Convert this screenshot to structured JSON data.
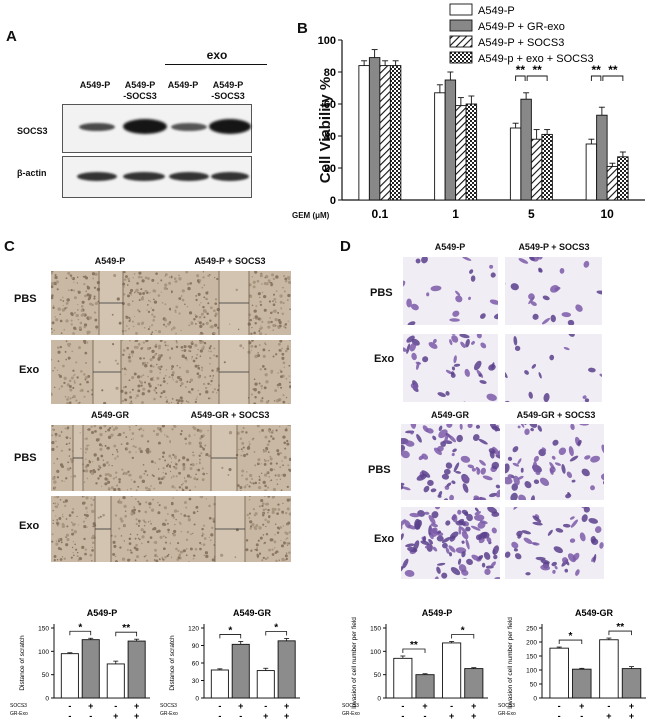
{
  "panels": {
    "a": "A",
    "b": "B",
    "c": "C",
    "d": "D"
  },
  "panel_a": {
    "exo_label": "exo",
    "lanes": [
      "A549-P",
      "A549-P\n-SOCS3",
      "A549-P",
      "A549-P\n-SOCS3"
    ],
    "rows": [
      "SOCS3",
      "β-actin"
    ]
  },
  "panel_c": {
    "top_cols": [
      "A549-P",
      "A549-P + SOCS3"
    ],
    "bottom_cols": [
      "A549-GR",
      "A549-GR + SOCS3"
    ],
    "rows": [
      "PBS",
      "Exo"
    ]
  },
  "panel_d": {
    "top_cols": [
      "A549-P",
      "A549-P + SOCS3"
    ],
    "bottom_cols": [
      "A549-GR",
      "A549-GR + SOCS3"
    ],
    "rows": [
      "PBS",
      "Exo"
    ]
  },
  "chart_data": [
    {
      "type": "bar",
      "id": "B",
      "ylabel": "Cell Viability %",
      "xlabel": "GEM (μM)",
      "categories": [
        "0.1",
        "1",
        "5",
        "10"
      ],
      "ylim": [
        0,
        100
      ],
      "yticks": [
        0,
        20,
        40,
        60,
        80,
        100
      ],
      "series": [
        {
          "name": "A549-P",
          "values": [
            84,
            67,
            45,
            35
          ],
          "errors": [
            3,
            5,
            3,
            3
          ]
        },
        {
          "name": "A549-P + GR-exo",
          "values": [
            89,
            75,
            63,
            53
          ],
          "errors": [
            5,
            5,
            4,
            5
          ]
        },
        {
          "name": "A549-P + SOCS3",
          "values": [
            84,
            59,
            38,
            21
          ],
          "errors": [
            3,
            5,
            6,
            2
          ]
        },
        {
          "name": "A549-p + exo + SOCS3",
          "values": [
            84,
            60,
            41,
            27
          ],
          "errors": [
            3,
            5,
            3,
            3
          ]
        }
      ],
      "significance": [
        "**",
        "**",
        "**",
        "**"
      ],
      "legend": "top-right"
    },
    {
      "type": "bar",
      "id": "C-A549-P",
      "title": "A549-P",
      "ylabel": "Distance of scratch",
      "ylim": [
        0,
        150
      ],
      "yticks": [
        0,
        50,
        100,
        150
      ],
      "values": [
        95,
        125,
        73,
        122
      ],
      "errors": [
        2,
        3,
        6,
        4
      ],
      "socs3": [
        "-",
        "+",
        "-",
        "+"
      ],
      "gr_exo": [
        "-",
        "-",
        "+",
        "+"
      ],
      "row_labels": [
        "SOCS3",
        "GR-Exo"
      ],
      "significance": [
        "*",
        "**"
      ]
    },
    {
      "type": "bar",
      "id": "C-A549-GR",
      "title": "A549-GR",
      "ylabel": "Distance of scratch",
      "ylim": [
        0,
        120
      ],
      "yticks": [
        0,
        30,
        60,
        90,
        120
      ],
      "values": [
        48,
        92,
        47,
        98
      ],
      "errors": [
        2,
        5,
        4,
        4
      ],
      "socs3": [
        "-",
        "+",
        "-",
        "+"
      ],
      "gr_exo": [
        "-",
        "-",
        "+",
        "+"
      ],
      "row_labels": [
        "SOCS3",
        "GR-Exo"
      ],
      "significance": [
        "*",
        "*"
      ]
    },
    {
      "type": "bar",
      "id": "D-A549-P",
      "title": "A549-P",
      "ylabel": "Invasion of cell number per field",
      "ylim": [
        0,
        150
      ],
      "yticks": [
        0,
        50,
        100,
        150
      ],
      "values": [
        85,
        50,
        118,
        63
      ],
      "errors": [
        5,
        2,
        3,
        2
      ],
      "socs3": [
        "-",
        "+",
        "-",
        "+"
      ],
      "gr_exo": [
        "-",
        "-",
        "+",
        "+"
      ],
      "row_labels": [
        "SOCS3",
        "GR-Exo"
      ],
      "significance": [
        "**",
        "*"
      ]
    },
    {
      "type": "bar",
      "id": "D-A549-GR",
      "title": "A549-GR",
      "ylabel": "Invasion of cell number per field",
      "ylim": [
        0,
        250
      ],
      "yticks": [
        0,
        50,
        100,
        150,
        200,
        250
      ],
      "values": [
        178,
        103,
        208,
        105
      ],
      "errors": [
        4,
        3,
        6,
        7
      ],
      "socs3": [
        "-",
        "+",
        "-",
        "+"
      ],
      "gr_exo": [
        "-",
        "-",
        "+",
        "+"
      ],
      "row_labels": [
        "SOCS3",
        "GR-Exo"
      ],
      "significance": [
        "*",
        "**"
      ]
    }
  ]
}
